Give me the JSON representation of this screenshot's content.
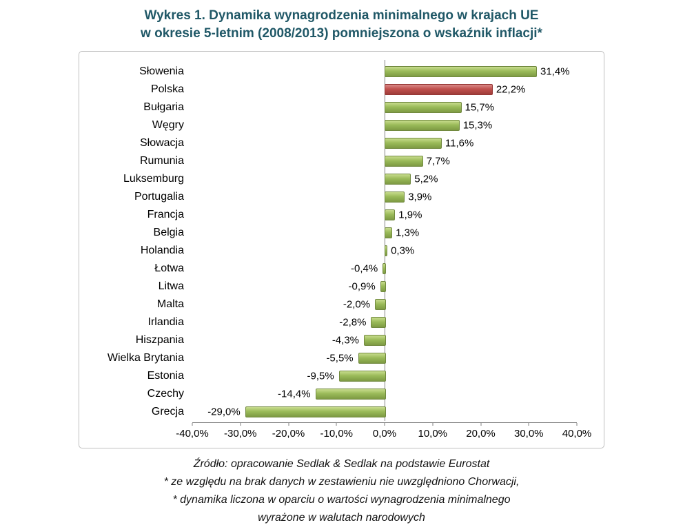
{
  "title": {
    "line1": "Wykres 1. Dynamika wynagrodzenia minimalnego w krajach UE",
    "line2": "w okresie 5-letnim (2008/2013) pomniejszona o wskaźnik inflacji*"
  },
  "chart_data": {
    "type": "bar",
    "orientation": "horizontal",
    "title": "Wykres 1. Dynamika wynagrodzenia minimalnego w krajach UE w okresie 5-letnim (2008/2013) pomniejszona o wskaźnik inflacji*",
    "categories": [
      "Słowenia",
      "Polska",
      "Bułgaria",
      "Węgry",
      "Słowacja",
      "Rumunia",
      "Luksemburg",
      "Portugalia",
      "Francja",
      "Belgia",
      "Holandia",
      "Łotwa",
      "Litwa",
      "Malta",
      "Irlandia",
      "Hiszpania",
      "Wielka Brytania",
      "Estonia",
      "Czechy",
      "Grecja"
    ],
    "values": [
      31.4,
      22.2,
      15.7,
      15.3,
      11.6,
      7.7,
      5.2,
      3.9,
      1.9,
      1.3,
      0.3,
      -0.4,
      -0.9,
      -2.0,
      -2.8,
      -4.3,
      -5.5,
      -9.5,
      -14.4,
      -29.0
    ],
    "labels": [
      "31,4%",
      "22,2%",
      "15,7%",
      "15,3%",
      "11,6%",
      "7,7%",
      "5,2%",
      "3,9%",
      "1,9%",
      "1,3%",
      "0,3%",
      "-0,4%",
      "-0,9%",
      "-2,0%",
      "-2,8%",
      "-4,3%",
      "-5,5%",
      "-9,5%",
      "-14,4%",
      "-29,0%"
    ],
    "highlight_category": "Polska",
    "xlim": [
      -40,
      40
    ],
    "x_ticks": [
      "-40,0%",
      "-30,0%",
      "-20,0%",
      "-10,0%",
      "0,0%",
      "10,0%",
      "20,0%",
      "30,0%",
      "40,0%"
    ],
    "x_tick_values": [
      -40,
      -30,
      -20,
      -10,
      0,
      10,
      20,
      30,
      40
    ],
    "grid": "zero-line-only",
    "legend": "none",
    "colors": {
      "bar": "#9BBB59",
      "highlight": "#C0504D",
      "title": "#205867",
      "axis": "#7F7F7F"
    }
  },
  "footer": {
    "lines": [
      "Źródło: opracowanie Sedlak & Sedlak na podstawie Eurostat",
      "* ze względu na brak danych w zestawieniu nie uwzględniono Chorwacji,",
      "* dynamika liczona w oparciu o wartości wynagrodzenia minimalnego",
      "wyrażone w walutach narodowych"
    ]
  }
}
